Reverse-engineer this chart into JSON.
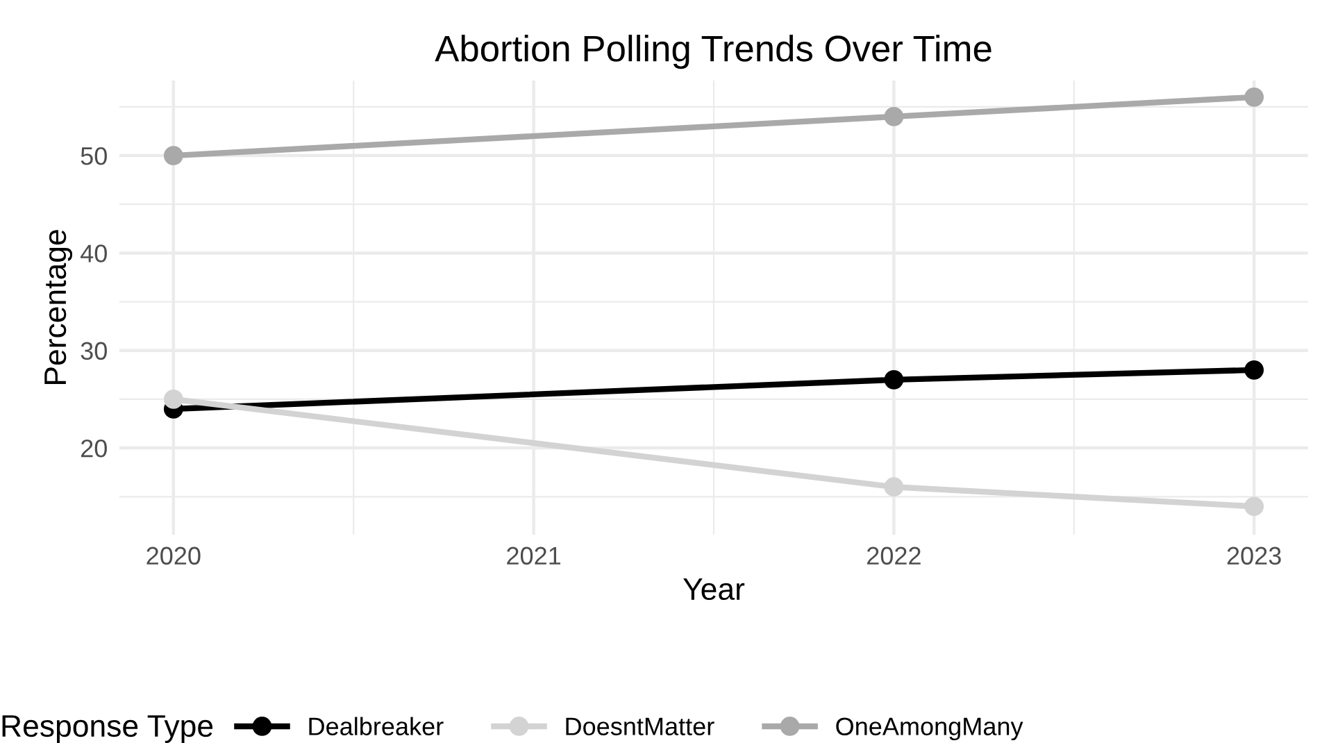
{
  "chart_data": {
    "type": "line",
    "title": "Abortion Polling Trends Over Time",
    "xlabel": "Year",
    "ylabel": "Percentage",
    "legend_title": "Response Type",
    "x": [
      2020,
      2022,
      2023
    ],
    "series": [
      {
        "name": "Dealbreaker",
        "color": "#000000",
        "values": [
          24,
          27,
          28
        ]
      },
      {
        "name": "DoesntMatter",
        "color": "#d3d3d3",
        "values": [
          25,
          16,
          14
        ]
      },
      {
        "name": "OneAmongMany",
        "color": "#a9a9a9",
        "values": [
          50,
          54,
          56
        ]
      }
    ],
    "xlim": [
      2019.85,
      2023.15
    ],
    "xticks": [
      2020,
      2021,
      2022,
      2023
    ],
    "ylim": [
      11.1,
      57.7
    ],
    "yticks": [
      20,
      30,
      40,
      50
    ],
    "grid": true,
    "legend": "bottom",
    "marker": "circle",
    "line_style": "solid"
  }
}
